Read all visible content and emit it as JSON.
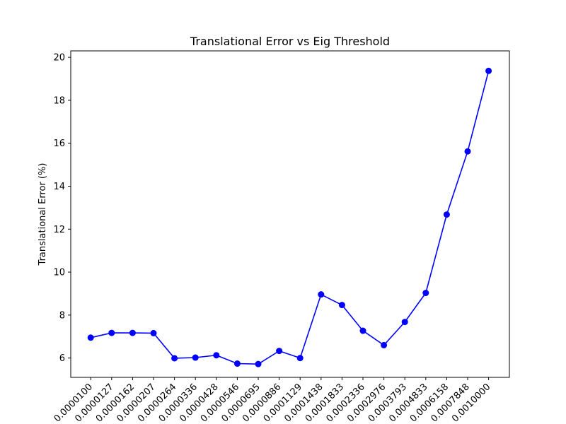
{
  "chart_data": {
    "type": "line",
    "title": "Translational Error vs Eig Threshold",
    "xlabel": "",
    "ylabel": "Translational Error (%)",
    "categories": [
      "0.0000100",
      "0.0000127",
      "0.0000162",
      "0.0000207",
      "0.0000264",
      "0.0000336",
      "0.0000428",
      "0.0000546",
      "0.0000695",
      "0.0000886",
      "0.0001129",
      "0.0001438",
      "0.0001833",
      "0.0002336",
      "0.0002976",
      "0.0003793",
      "0.0004833",
      "0.0006158",
      "0.0007848",
      "0.0010000"
    ],
    "series": [
      {
        "values": [
          6.95,
          7.17,
          7.17,
          7.16,
          5.99,
          6.02,
          6.13,
          5.74,
          5.72,
          6.33,
          6.0,
          8.96,
          8.47,
          7.27,
          6.6,
          7.68,
          9.03,
          12.68,
          15.62,
          19.37
        ],
        "color": "#0000ff"
      }
    ],
    "ylim": [
      5.1,
      20.3
    ],
    "yticks": [
      6,
      8,
      10,
      12,
      14,
      16,
      18,
      20
    ],
    "grid": false,
    "legend": "none"
  }
}
